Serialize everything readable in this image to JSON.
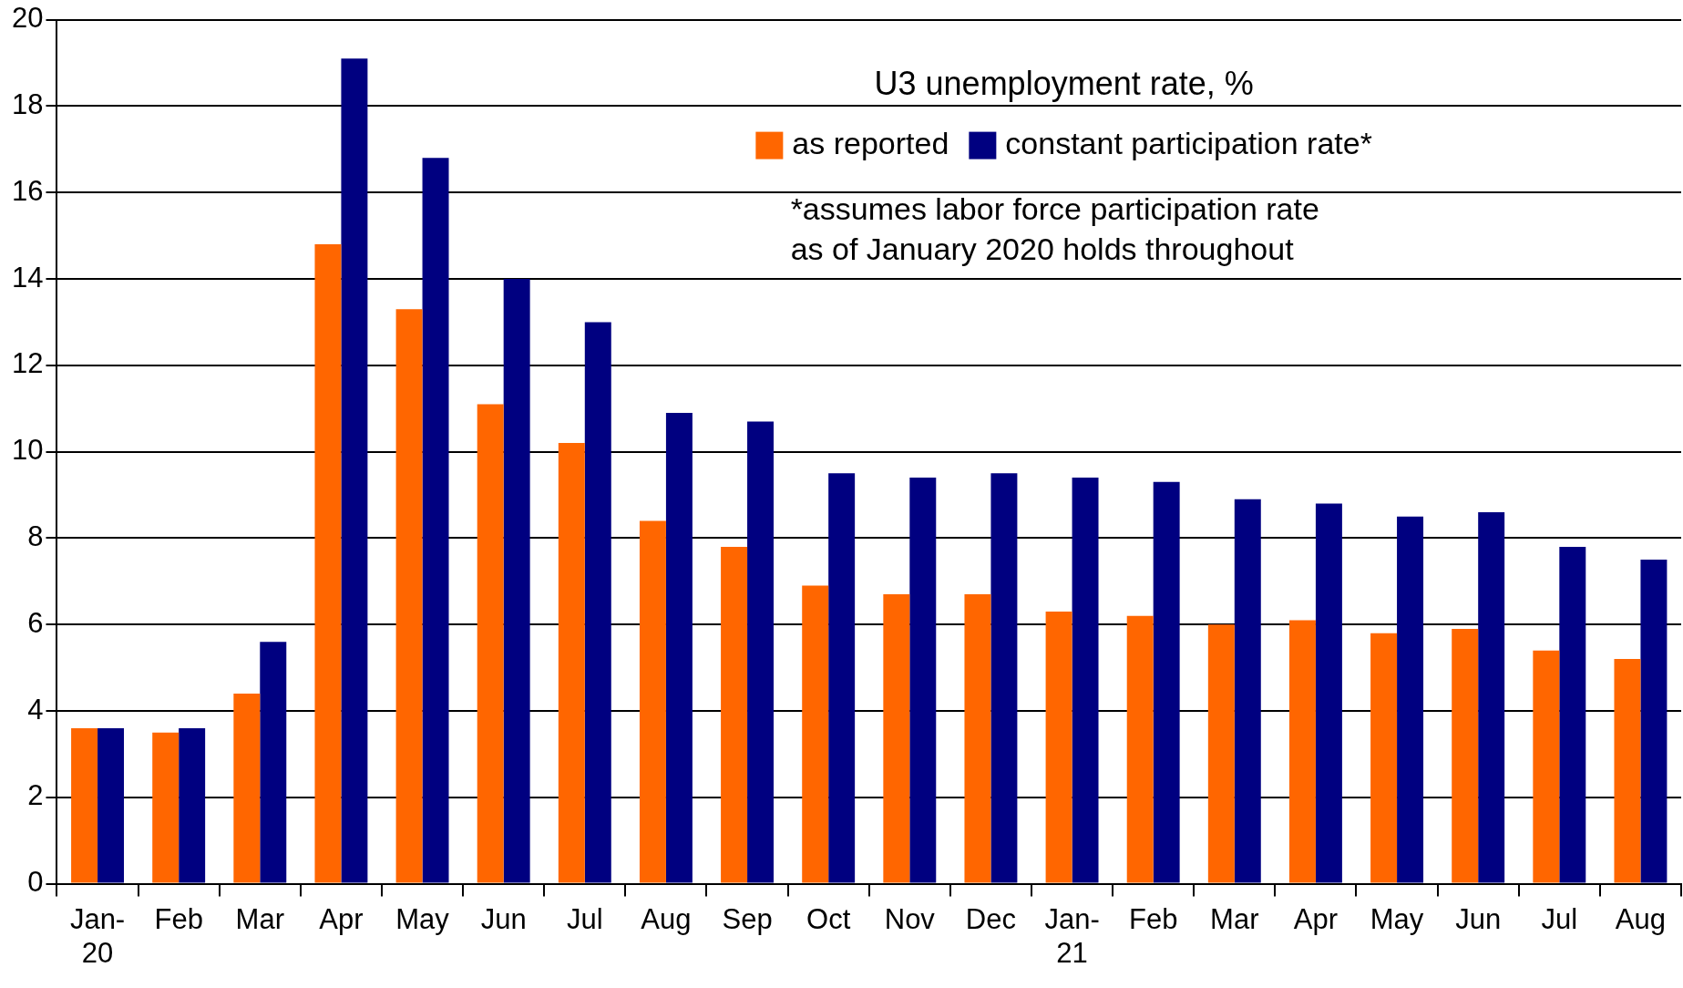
{
  "chart_data": {
    "type": "bar",
    "categories": [
      "Jan-\n20",
      "Feb",
      "Mar",
      "Apr",
      "May",
      "Jun",
      "Jul",
      "Aug",
      "Sep",
      "Oct",
      "Nov",
      "Dec",
      "Jan-\n21",
      "Feb",
      "Mar",
      "Apr",
      "May",
      "Jun",
      "Jul",
      "Aug"
    ],
    "series": [
      {
        "name": "as reported",
        "color": "#ff6600",
        "values": [
          3.6,
          3.5,
          4.4,
          14.8,
          13.3,
          11.1,
          10.2,
          8.4,
          7.8,
          6.9,
          6.7,
          6.7,
          6.3,
          6.2,
          6.0,
          6.1,
          5.8,
          5.9,
          5.4,
          5.2
        ]
      },
      {
        "name": "constant participation rate*",
        "color": "#000080",
        "values": [
          3.6,
          3.6,
          5.6,
          19.1,
          16.8,
          14.0,
          13.0,
          10.9,
          10.7,
          9.5,
          9.4,
          9.5,
          9.4,
          9.3,
          8.9,
          8.8,
          8.5,
          8.6,
          7.8,
          7.5
        ]
      }
    ],
    "legend_title": "U3 unemployment rate, %",
    "legend": "top",
    "annotations": [
      "*assumes labor force participation rate\nas of January 2020 holds throughout"
    ],
    "ylim": [
      0,
      20
    ],
    "yticks": [
      0,
      2,
      4,
      6,
      8,
      10,
      12,
      14,
      16,
      18,
      20
    ],
    "grid": "y"
  }
}
